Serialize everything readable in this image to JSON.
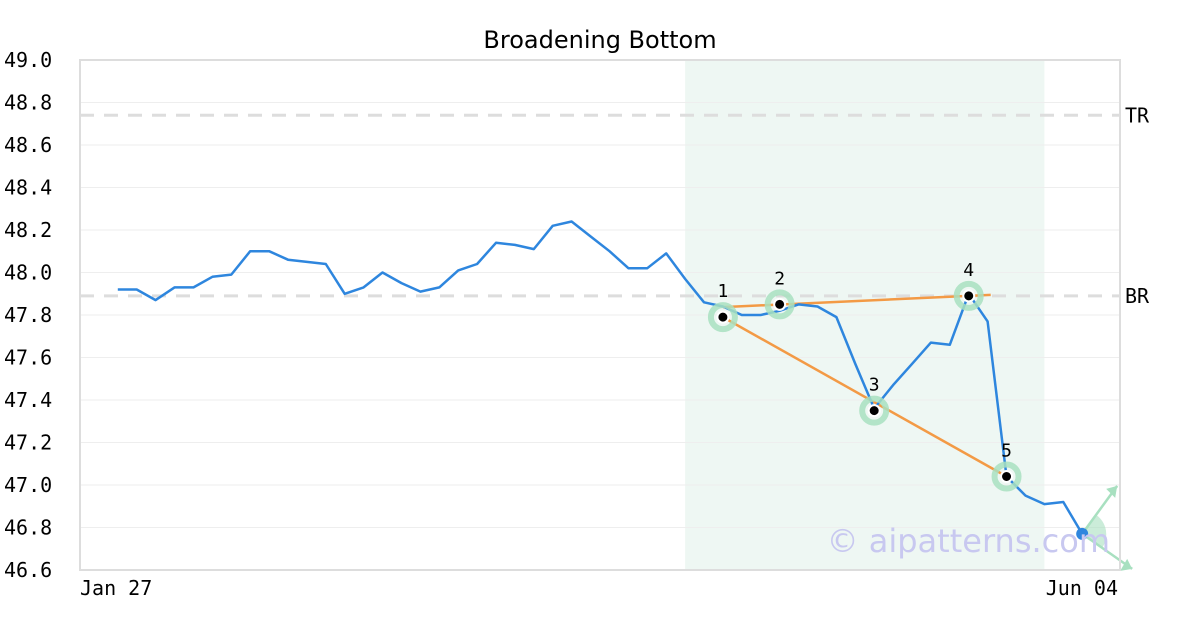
{
  "chart_data": {
    "type": "line",
    "title": "Broadening Bottom",
    "ylim": [
      46.6,
      49.0
    ],
    "y_ticks": [
      "49.0",
      "48.8",
      "48.6",
      "48.4",
      "48.2",
      "48.0",
      "47.8",
      "47.6",
      "47.4",
      "47.2",
      "47.0",
      "46.8",
      "46.6"
    ],
    "x_tick_labels": [
      "Jan 27",
      "Jun 04"
    ],
    "grid": true,
    "series": [
      {
        "values": [
          47.92,
          47.92,
          47.87,
          47.93,
          47.93,
          47.98,
          47.99,
          48.1,
          48.1,
          48.06,
          48.05,
          48.04,
          47.9,
          47.93,
          48.0,
          47.95,
          47.91,
          47.93,
          48.01,
          48.04,
          48.14,
          48.13,
          48.11,
          48.22,
          48.24,
          48.17,
          48.1,
          48.02,
          48.02,
          48.09,
          47.97,
          47.86,
          47.84,
          47.8,
          47.8,
          47.82,
          47.85,
          47.84,
          47.79,
          47.57,
          47.36,
          47.47,
          47.57,
          47.67,
          47.66,
          47.9,
          47.77,
          47.04,
          46.95,
          46.91,
          46.92,
          46.77
        ]
      }
    ],
    "reference_lines": [
      {
        "label": "TR",
        "value": 48.74
      },
      {
        "label": "BR",
        "value": 47.89
      }
    ],
    "pattern_points": [
      {
        "label": "1",
        "index": 34,
        "value": 47.79
      },
      {
        "label": "2",
        "index": 37,
        "value": 47.85
      },
      {
        "label": "3",
        "index": 42,
        "value": 47.35
      },
      {
        "label": "4",
        "index": 47,
        "value": 47.89
      },
      {
        "label": "5",
        "index": 49,
        "value": 47.04
      }
    ],
    "pattern_range_index": [
      32,
      51
    ],
    "last_point_index": 53,
    "colors": {
      "line": "#2e86de",
      "trendline": "#f39a45",
      "highlight": "#a8e0c0",
      "shade": "#eef7f3",
      "reference": "#dddddd",
      "watermark": "#c8c8f0"
    }
  },
  "watermark": "© aipatterns.com"
}
